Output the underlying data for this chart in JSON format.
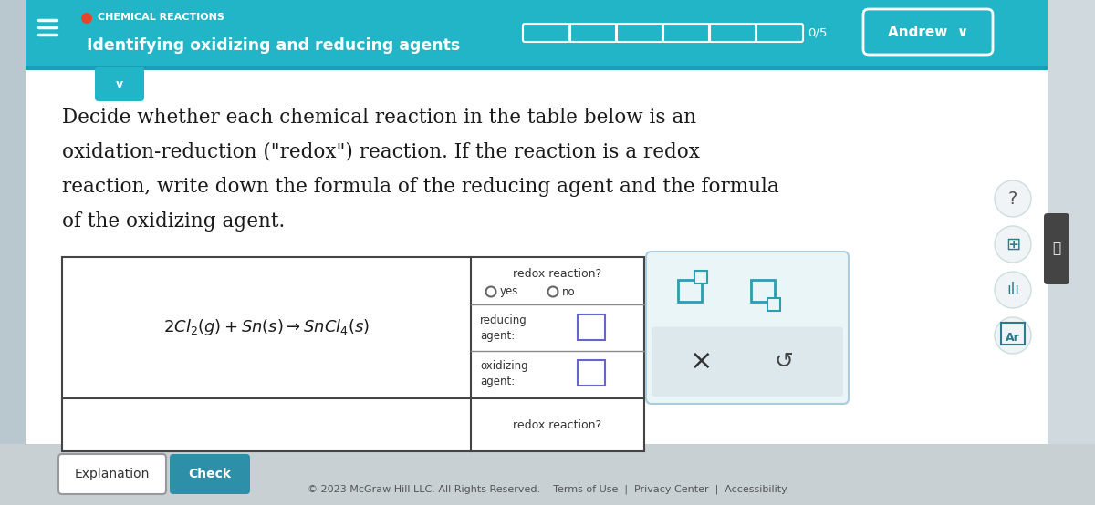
{
  "header_bg": "#22b5c7",
  "header_text_color": "#ffffff",
  "header_title": "CHEMICAL REACTIONS",
  "header_subtitle": "Identifying oxidizing and reducing agents",
  "header_dot_color": "#e8442a",
  "progress_text": "0/5",
  "body_bg": "#e8eef0",
  "main_bg": "#ffffff",
  "table_border": "#555555",
  "redox_label": "redox reaction?",
  "yes_label": "yes",
  "no_label": "no",
  "reducing_label": "reducing\nagent:",
  "oxidizing_label": "oxidizing\nagent:",
  "redox2_label": "redox reaction?",
  "footer_bg": "#c8d0d4",
  "explanation_btn_text": "Explanation",
  "check_btn_text": "Check",
  "check_btn_bg": "#2d8fa8",
  "footer_copyright": "© 2023 McGraw Hill LLC. All Rights Reserved.",
  "footer_links": "Terms of Use  |  Privacy Center  |  Accessibility",
  "right_panel_bg": "#eaf5f8",
  "right_panel_lower_bg": "#dce8ec",
  "teal_icon_color": "#2d9db0",
  "sidebar_bg": "#b8c8ce",
  "right_sidebar_bg": "#d0dade",
  "dark_collapse_btn": "#444444"
}
